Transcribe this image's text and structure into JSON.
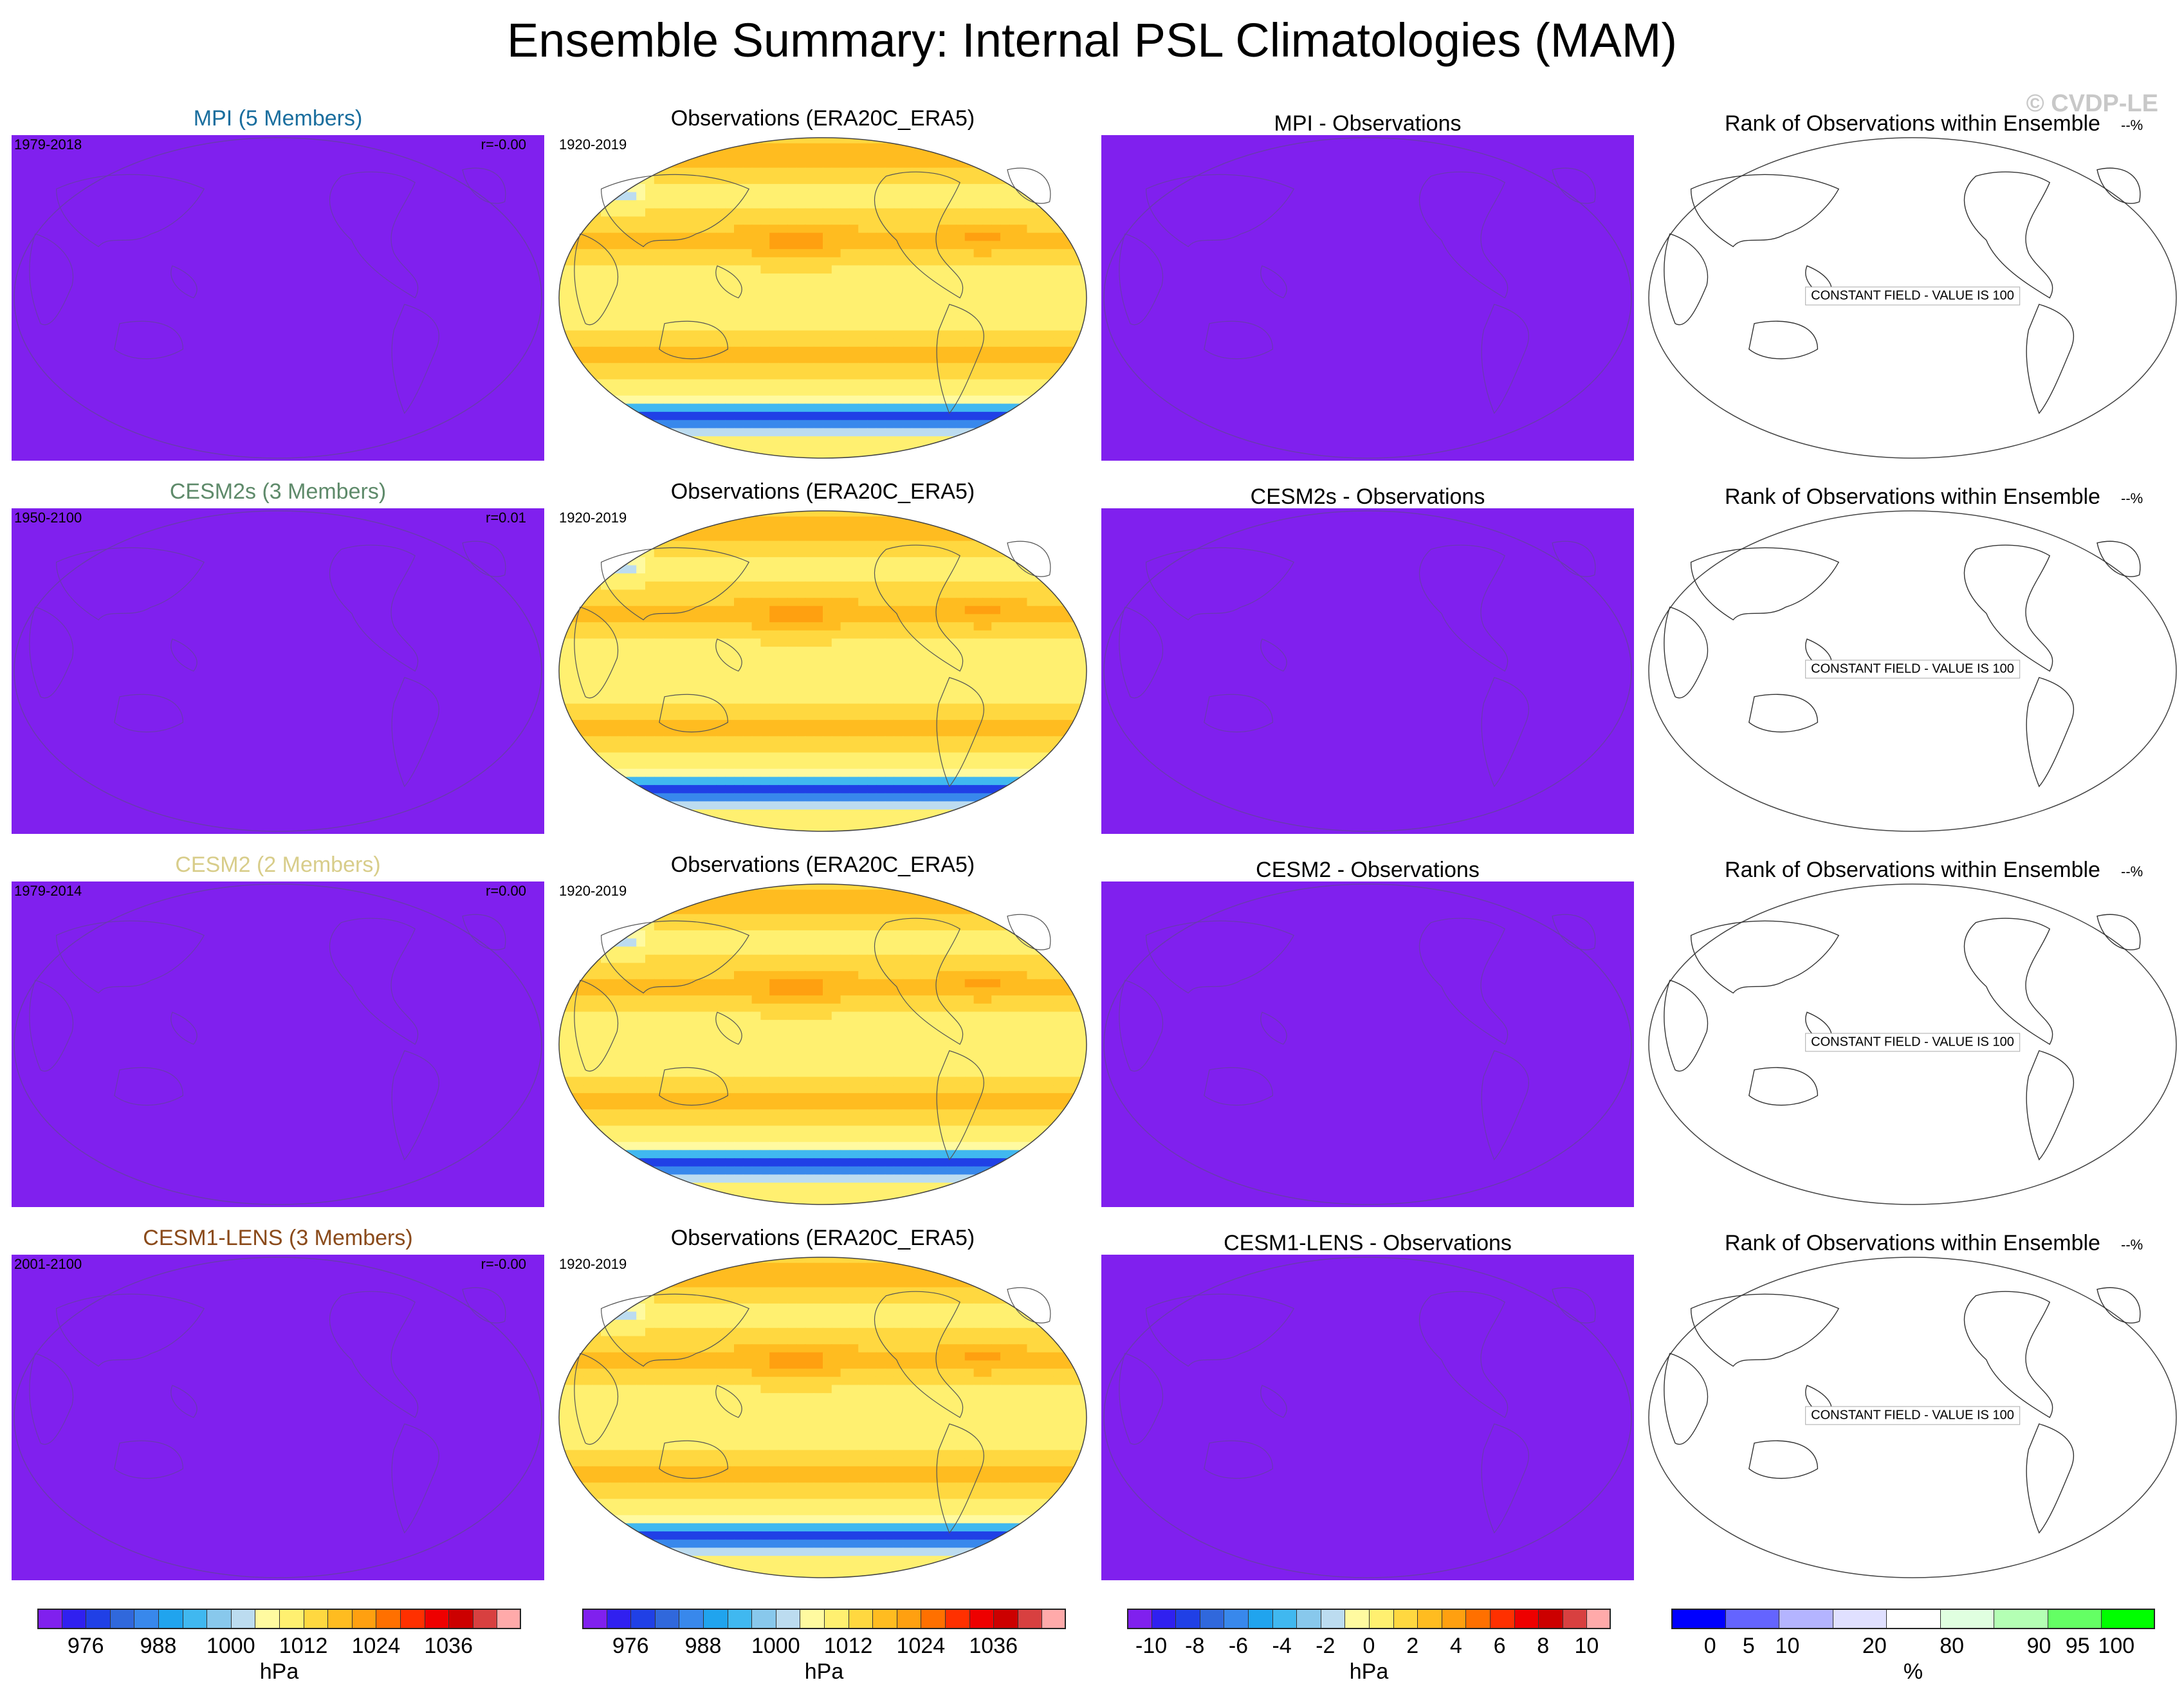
{
  "title": "Ensemble Summary: Internal PSL Climatologies (MAM)",
  "watermark": "© CVDP-LE",
  "colors": {
    "model_fill": "#8020ee",
    "title_mpi": "#1a6e9e",
    "title_cesm2s": "#5e8a6a",
    "title_cesm2": "#d8cd8a",
    "title_cesm1": "#8a4a1a"
  },
  "rows": [
    {
      "model_title": "MPI (5 Members)",
      "model_title_color": "#1a6e9e",
      "model_years": "1979-2018",
      "model_r": "r=-0.00",
      "obs_title": "Observations (ERA20C_ERA5)",
      "obs_years": "1920-2019",
      "diff_title": "MPI - Observations",
      "rank_title": "Rank of Observations within Ensemble",
      "rank_pct": "--%",
      "rank_label": "CONSTANT FIELD - VALUE IS 100"
    },
    {
      "model_title": "CESM2s (3 Members)",
      "model_title_color": "#5e8a6a",
      "model_years": "1950-2100",
      "model_r": "r=0.01",
      "obs_title": "Observations (ERA20C_ERA5)",
      "obs_years": "1920-2019",
      "diff_title": "CESM2s - Observations",
      "rank_title": "Rank of Observations within Ensemble",
      "rank_pct": "--%",
      "rank_label": "CONSTANT FIELD - VALUE IS 100"
    },
    {
      "model_title": "CESM2 (2 Members)",
      "model_title_color": "#d8cd8a",
      "model_years": "1979-2014",
      "model_r": "r=0.00",
      "obs_title": "Observations (ERA20C_ERA5)",
      "obs_years": "1920-2019",
      "diff_title": "CESM2 - Observations",
      "rank_title": "Rank of Observations within Ensemble",
      "rank_pct": "--%",
      "rank_label": "CONSTANT FIELD - VALUE IS 100"
    },
    {
      "model_title": "CESM1-LENS (3 Members)",
      "model_title_color": "#8a4a1a",
      "model_years": "2001-2100",
      "model_r": "r=-0.00",
      "obs_title": "Observations (ERA20C_ERA5)",
      "obs_years": "1920-2019",
      "diff_title": "CESM1-LENS - Observations",
      "rank_title": "Rank of Observations within Ensemble",
      "rank_pct": "--%",
      "rank_label": "CONSTANT FIELD - VALUE IS 100"
    }
  ],
  "chart_data": {
    "type": "heatmap",
    "title": "Ensemble Summary: Internal PSL Climatologies (MAM)",
    "colorbars": [
      {
        "id": "psl",
        "unit": "hPa",
        "ticks": [
          "976",
          "988",
          "1000",
          "1012",
          "1024",
          "1036"
        ],
        "levels": [
          972,
          976,
          980,
          984,
          988,
          992,
          996,
          1000,
          1004,
          1008,
          1012,
          1016,
          1020,
          1024,
          1028,
          1032,
          1036,
          1040
        ],
        "colors": [
          "#8020ee",
          "#3020f0",
          "#2040e6",
          "#3068dc",
          "#3888ec",
          "#20a4ee",
          "#40b8f0",
          "#88c8ec",
          "#bcdcf0",
          "#fffaa0",
          "#fff070",
          "#ffd840",
          "#ffbc20",
          "#ffa010",
          "#ff7000",
          "#ff3000",
          "#ee0000",
          "#cc0000",
          "#d84040",
          "#ffaaaa"
        ]
      },
      {
        "id": "psl_obs",
        "unit": "hPa",
        "ticks": [
          "976",
          "988",
          "1000",
          "1012",
          "1024",
          "1036"
        ],
        "levels": [
          972,
          976,
          980,
          984,
          988,
          992,
          996,
          1000,
          1004,
          1008,
          1012,
          1016,
          1020,
          1024,
          1028,
          1032,
          1036,
          1040
        ],
        "colors": [
          "#8020ee",
          "#3020f0",
          "#2040e6",
          "#3068dc",
          "#3888ec",
          "#20a4ee",
          "#40b8f0",
          "#88c8ec",
          "#bcdcf0",
          "#fffaa0",
          "#fff070",
          "#ffd840",
          "#ffbc20",
          "#ffa010",
          "#ff7000",
          "#ff3000",
          "#ee0000",
          "#cc0000",
          "#d84040",
          "#ffaaaa"
        ]
      },
      {
        "id": "diff",
        "unit": "hPa",
        "ticks": [
          "-10",
          "-8",
          "-6",
          "-4",
          "-2",
          "0",
          "2",
          "4",
          "6",
          "8",
          "10"
        ],
        "levels": [
          -10,
          -9,
          -8,
          -7,
          -6,
          -5,
          -4,
          -3,
          -2,
          -1,
          0,
          1,
          2,
          3,
          4,
          5,
          6,
          7,
          8,
          9,
          10
        ],
        "colors": [
          "#8020ee",
          "#3020f0",
          "#2040e6",
          "#3068dc",
          "#3888ec",
          "#20a4ee",
          "#40b8f0",
          "#88c8ec",
          "#bcdcf0",
          "#fffaa0",
          "#fff070",
          "#ffd840",
          "#ffbc20",
          "#ffa010",
          "#ff7000",
          "#ff3000",
          "#ee0000",
          "#cc0000",
          "#d84040",
          "#ffaaaa"
        ]
      },
      {
        "id": "rank",
        "unit": "%",
        "ticks": [
          "0",
          "5",
          "10",
          "20",
          "80",
          "90",
          "95",
          "100"
        ],
        "levels": [
          0,
          5,
          10,
          20,
          80,
          90,
          95,
          100
        ],
        "colors": [
          "#0000ff",
          "#6464ff",
          "#b4b4ff",
          "#e0e0ff",
          "#ffffff",
          "#e0ffe0",
          "#b4ffb4",
          "#64ff64",
          "#00ff00"
        ]
      }
    ],
    "model_field": "constant (lowest contour level)",
    "rank_field": "constant 100",
    "obs_field_description": "ERA20C_ERA5 MAM sea level pressure climatology"
  }
}
